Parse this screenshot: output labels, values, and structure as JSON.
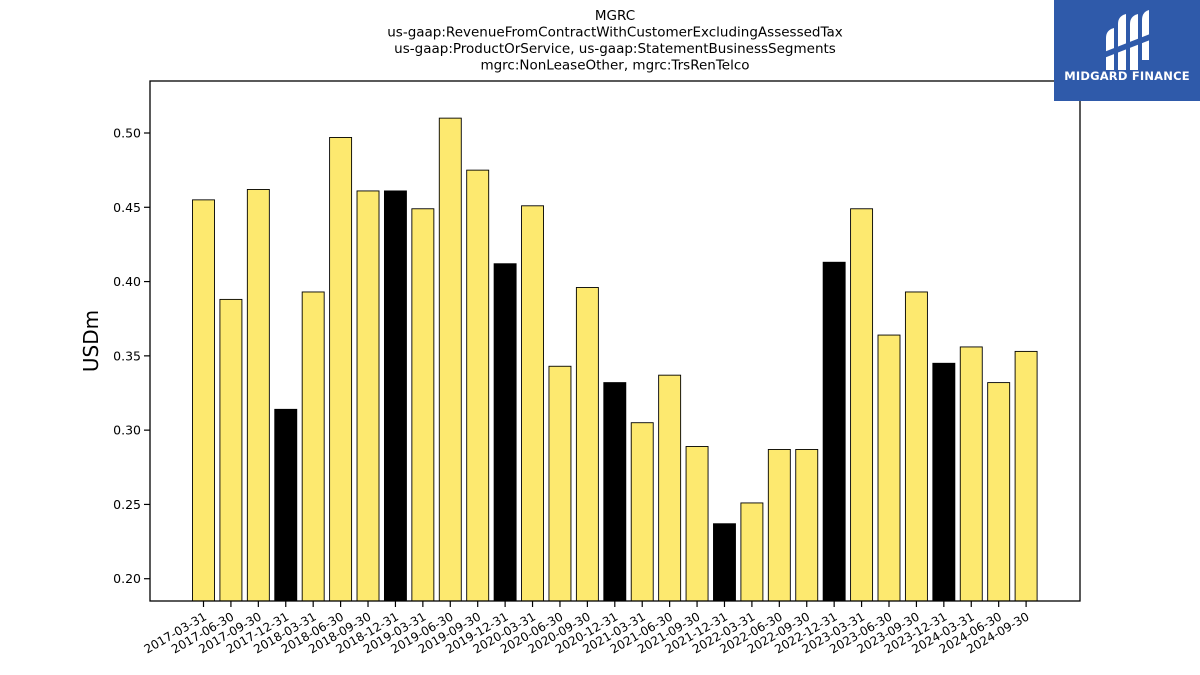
{
  "chart_data": {
    "type": "bar",
    "title_lines": [
      "MGRC",
      "us-gaap:RevenueFromContractWithCustomerExcludingAssessedTax",
      "us-gaap:ProductOrService, us-gaap:StatementBusinessSegments",
      "mgrc:NonLeaseOther, mgrc:TrsRenTelco"
    ],
    "xlabel": "",
    "ylabel": "USDm",
    "ylim": [
      0.185,
      0.535
    ],
    "yticks": [
      "0.20",
      "0.25",
      "0.30",
      "0.35",
      "0.40",
      "0.45",
      "0.50"
    ],
    "grid": false,
    "categories": [
      "2017-03-31",
      "2017-06-30",
      "2017-09-30",
      "2017-12-31",
      "2018-03-31",
      "2018-06-30",
      "2018-09-30",
      "2018-12-31",
      "2019-03-31",
      "2019-06-30",
      "2019-09-30",
      "2019-12-31",
      "2020-03-31",
      "2020-06-30",
      "2020-09-30",
      "2020-12-31",
      "2021-03-31",
      "2021-06-30",
      "2021-09-30",
      "2021-12-31",
      "2022-03-31",
      "2022-06-30",
      "2022-09-30",
      "2022-12-31",
      "2023-03-31",
      "2023-06-30",
      "2023-09-30",
      "2023-12-31",
      "2024-03-31",
      "2024-06-30",
      "2024-09-30"
    ],
    "values": [
      0.455,
      0.388,
      0.462,
      0.314,
      0.393,
      0.497,
      0.461,
      0.461,
      0.449,
      0.51,
      0.475,
      0.412,
      0.451,
      0.343,
      0.396,
      0.332,
      0.305,
      0.337,
      0.289,
      0.237,
      0.251,
      0.287,
      0.287,
      0.413,
      0.449,
      0.364,
      0.393,
      0.345,
      0.356,
      0.332,
      0.353
    ],
    "colors": {
      "quarter": "#fde96f",
      "year_end": "#000000",
      "edge": "#000000"
    }
  },
  "logo": {
    "text": "MIDGARD FINANCE"
  }
}
